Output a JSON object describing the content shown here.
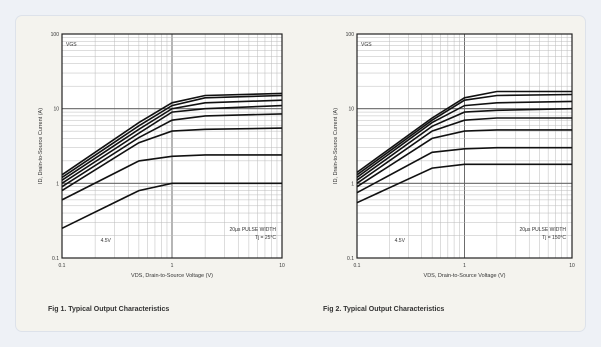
{
  "chart_data": [
    {
      "type": "line",
      "figure_caption": "Fig 1.  Typical Output Characteristics",
      "xlabel": "VDS, Drain-to-Source Voltage (V)",
      "ylabel": "ID, Drain-to-Source Current (A)",
      "xlim": [
        0.1,
        10
      ],
      "ylim": [
        0.1,
        100
      ],
      "x_scale": "log",
      "y_scale": "log",
      "grid": true,
      "x_ticks": [
        "0.1",
        "1",
        "10"
      ],
      "y_ticks": [
        "0.1",
        "1",
        "10",
        "100"
      ],
      "annotations": [
        "20µs PULSE WIDTH",
        "Tj = 25°C",
        "4.5V",
        "VGS"
      ],
      "series": [
        {
          "values": [
            [
              0.1,
              1.3
            ],
            [
              0.5,
              6.5
            ],
            [
              1,
              12
            ],
            [
              2,
              15
            ],
            [
              10,
              16
            ]
          ]
        },
        {
          "values": [
            [
              0.1,
              1.2
            ],
            [
              0.5,
              5.9
            ],
            [
              1,
              11
            ],
            [
              2,
              14
            ],
            [
              10,
              15
            ]
          ]
        },
        {
          "values": [
            [
              0.1,
              1.1
            ],
            [
              0.5,
              5.3
            ],
            [
              1,
              10
            ],
            [
              2,
              12
            ],
            [
              10,
              13
            ]
          ]
        },
        {
          "values": [
            [
              0.1,
              1.0
            ],
            [
              0.5,
              4.7
            ],
            [
              1,
              9
            ],
            [
              2,
              10
            ],
            [
              10,
              11
            ]
          ]
        },
        {
          "values": [
            [
              0.1,
              0.9
            ],
            [
              0.5,
              4.1
            ],
            [
              1,
              7
            ],
            [
              2,
              8
            ],
            [
              10,
              8.5
            ]
          ]
        },
        {
          "values": [
            [
              0.1,
              0.8
            ],
            [
              0.5,
              3.5
            ],
            [
              1,
              5
            ],
            [
              2,
              5.3
            ],
            [
              10,
              5.5
            ]
          ]
        },
        {
          "values": [
            [
              0.1,
              0.6
            ],
            [
              0.5,
              2.0
            ],
            [
              1,
              2.3
            ],
            [
              2,
              2.4
            ],
            [
              10,
              2.4
            ]
          ]
        },
        {
          "values": [
            [
              0.1,
              0.25
            ],
            [
              0.5,
              0.8
            ],
            [
              1,
              1.0
            ],
            [
              2,
              1.0
            ],
            [
              10,
              1.0
            ]
          ]
        }
      ]
    },
    {
      "type": "line",
      "figure_caption": "Fig 2.  Typical Output Characteristics",
      "xlabel": "VDS, Drain-to-Source Voltage (V)",
      "ylabel": "ID, Drain-to-Source Current (A)",
      "xlim": [
        0.1,
        10
      ],
      "ylim": [
        0.1,
        100
      ],
      "x_scale": "log",
      "y_scale": "log",
      "grid": true,
      "x_ticks": [
        "0.1",
        "1",
        "10"
      ],
      "y_ticks": [
        "0.1",
        "1",
        "10",
        "100"
      ],
      "annotations": [
        "20µs PULSE WIDTH",
        "Tj = 150°C",
        "4.5V",
        "VGS"
      ],
      "series": [
        {
          "values": [
            [
              0.1,
              1.4
            ],
            [
              0.5,
              7.5
            ],
            [
              1,
              14
            ],
            [
              2,
              17
            ],
            [
              10,
              17
            ]
          ]
        },
        {
          "values": [
            [
              0.1,
              1.3
            ],
            [
              0.5,
              7.0
            ],
            [
              1,
              13
            ],
            [
              2,
              15
            ],
            [
              10,
              15.5
            ]
          ]
        },
        {
          "values": [
            [
              0.1,
              1.2
            ],
            [
              0.5,
              6.5
            ],
            [
              1,
              11
            ],
            [
              2,
              12
            ],
            [
              10,
              12.5
            ]
          ]
        },
        {
          "values": [
            [
              0.1,
              1.1
            ],
            [
              0.5,
              5.8
            ],
            [
              1,
              9
            ],
            [
              2,
              9.5
            ],
            [
              10,
              10
            ]
          ]
        },
        {
          "values": [
            [
              0.1,
              1.0
            ],
            [
              0.5,
              5.0
            ],
            [
              1,
              7
            ],
            [
              2,
              7.5
            ],
            [
              10,
              7.5
            ]
          ]
        },
        {
          "values": [
            [
              0.1,
              0.9
            ],
            [
              0.5,
              4.0
            ],
            [
              1,
              5
            ],
            [
              2,
              5.2
            ],
            [
              10,
              5.2
            ]
          ]
        },
        {
          "values": [
            [
              0.1,
              0.75
            ],
            [
              0.5,
              2.6
            ],
            [
              1,
              2.9
            ],
            [
              2,
              3.0
            ],
            [
              10,
              3.0
            ]
          ]
        },
        {
          "values": [
            [
              0.1,
              0.55
            ],
            [
              0.5,
              1.6
            ],
            [
              1,
              1.8
            ],
            [
              2,
              1.8
            ],
            [
              10,
              1.8
            ]
          ]
        }
      ]
    }
  ]
}
